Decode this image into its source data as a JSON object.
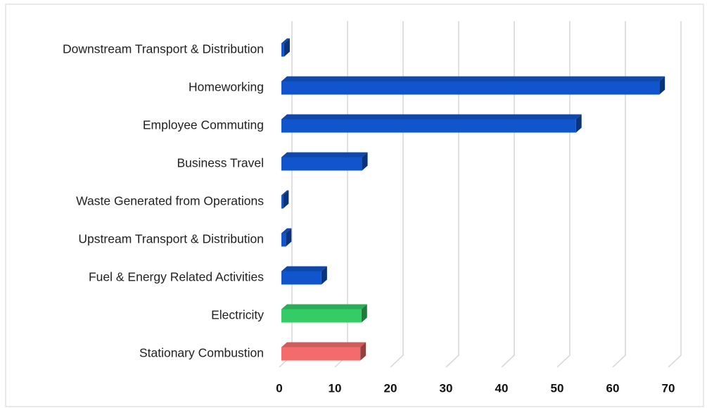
{
  "chart_data": {
    "type": "bar",
    "orientation": "horizontal",
    "categories": [
      "Downstream Transport & Distribution",
      "Homeworking",
      "Employee Commuting",
      "Business Travel",
      "Waste Generated from Operations",
      "Upstream Transport & Distribution",
      "Fuel & Energy Related Activities",
      "Electricity",
      "Stationary Combustion"
    ],
    "values": [
      0.5,
      68,
      53,
      14.5,
      0.3,
      0.8,
      7.2,
      14.4,
      14.2
    ],
    "colors": [
      "#1155cc",
      "#1155cc",
      "#1155cc",
      "#1155cc",
      "#1155cc",
      "#1155cc",
      "#1155cc",
      "#33cc66",
      "#f46b6b"
    ],
    "xlim": [
      0,
      70
    ],
    "xticks": [
      0,
      10,
      20,
      30,
      40,
      50,
      60,
      70
    ],
    "grid": true
  }
}
